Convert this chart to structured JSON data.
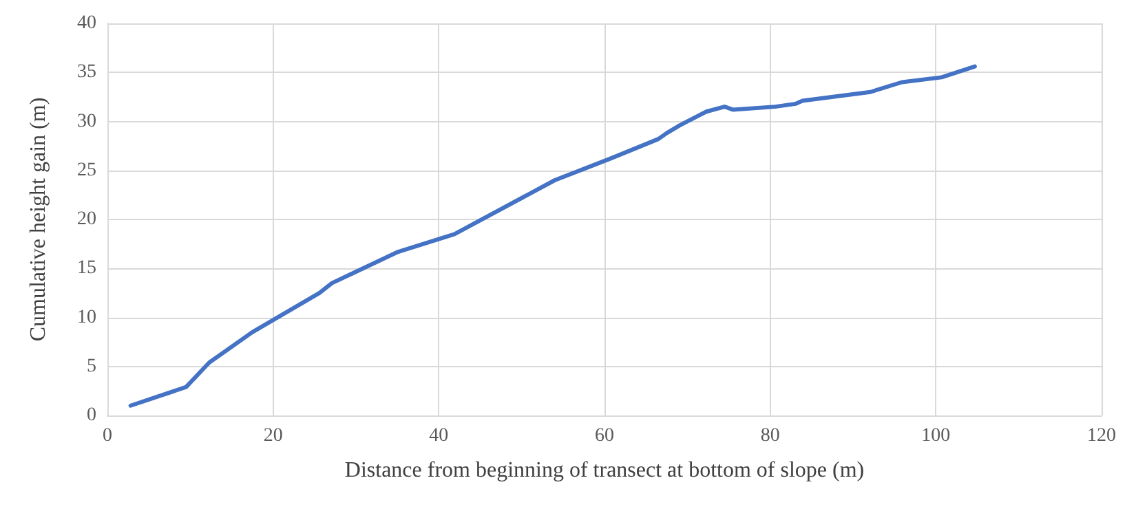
{
  "chart_data": {
    "type": "line",
    "xlabel": "Distance from beginning of transect at bottom of slope (m)",
    "ylabel": "Cumulative height gain (m)",
    "x": [
      2.8,
      9.5,
      12.3,
      17.5,
      25.6,
      27.1,
      35.1,
      41.9,
      54,
      60.7,
      66.5,
      67.5,
      69.1,
      72.3,
      74.5,
      75.5,
      80.6,
      83.1,
      83.9,
      92.1,
      95.9,
      100.7,
      104.7
    ],
    "series": [
      {
        "color": "#4472c4",
        "values": [
          1.0,
          2.9,
          5.4,
          8.5,
          12.5,
          13.5,
          16.7,
          18.5,
          24.0,
          26.2,
          28.2,
          28.8,
          29.6,
          31.0,
          31.5,
          31.2,
          31.5,
          31.8,
          32.1,
          33.0,
          34.0,
          34.5,
          35.6
        ]
      }
    ],
    "xlim": [
      0,
      120
    ],
    "xticks": [
      0,
      20,
      40,
      60,
      80,
      100,
      120
    ],
    "ylim": [
      0,
      40
    ],
    "yticks": [
      0,
      5,
      10,
      15,
      20,
      25,
      30,
      35,
      40
    ],
    "grid": true,
    "marker": "none",
    "line_style": "solid"
  }
}
